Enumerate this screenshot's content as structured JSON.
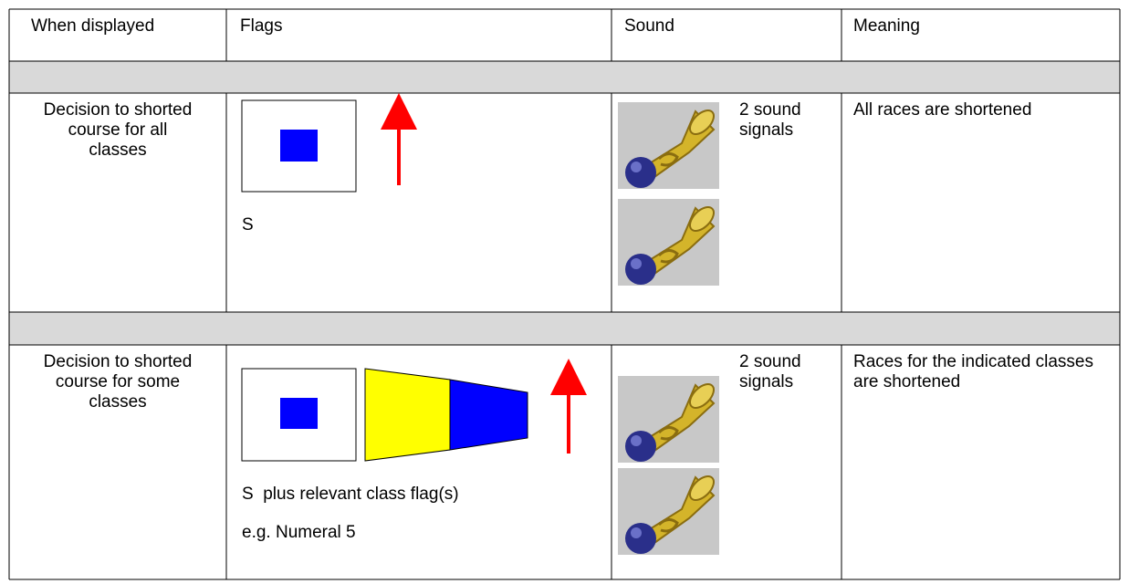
{
  "table": {
    "header": [
      "When displayed",
      "Flags",
      "Sound",
      "Meaning"
    ],
    "rows": [
      {
        "when": "Decision to shorted course for all classes",
        "flag_caption": "S",
        "sound": "2 sound signals",
        "meaning": "All races are shortened"
      },
      {
        "when": "Decision to shorted course for some classes",
        "flag_caption": "S  plus relevant class flag(s)",
        "flag_example": "e.g. Numeral 5",
        "sound": "2 sound signals",
        "meaning": "Races for the indicated classes are shortened"
      }
    ]
  }
}
